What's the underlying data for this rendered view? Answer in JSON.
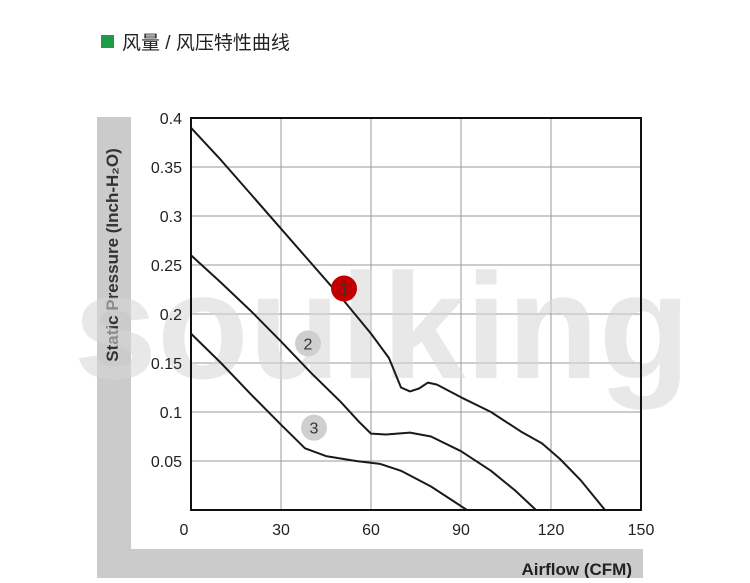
{
  "header": {
    "title": "风量 / 风压特性曲线"
  },
  "chart_data": {
    "type": "line",
    "watermark": "soulking",
    "x_label": "Airflow (CFM)",
    "y_label": "Static Pressure (Inch-H₂O)",
    "xlim": [
      0,
      150
    ],
    "ylim": [
      0,
      0.4
    ],
    "xticks": [
      0,
      30,
      60,
      90,
      120,
      150
    ],
    "yticks": [
      0.05,
      0.1,
      0.15,
      0.2,
      0.25,
      0.3,
      0.35,
      0.4
    ],
    "grid": true,
    "series": [
      {
        "name": "1",
        "color": "#1a1a1a",
        "badge_color": "#c00000",
        "x": [
          0,
          10,
          20,
          30,
          40,
          50,
          60,
          66,
          70,
          73,
          76,
          79,
          82,
          90,
          100,
          110,
          117,
          123,
          130,
          138
        ],
        "values": [
          0.39,
          0.357,
          0.322,
          0.287,
          0.252,
          0.217,
          0.18,
          0.155,
          0.125,
          0.121,
          0.124,
          0.13,
          0.128,
          0.115,
          0.1,
          0.08,
          0.068,
          0.052,
          0.03,
          0
        ]
      },
      {
        "name": "2",
        "color": "#1a1a1a",
        "badge_color": "#cfcfcf",
        "x": [
          0,
          10,
          20,
          30,
          40,
          50,
          56,
          60,
          65,
          73,
          80,
          90,
          100,
          108,
          115
        ],
        "values": [
          0.26,
          0.232,
          0.203,
          0.172,
          0.14,
          0.11,
          0.09,
          0.078,
          0.077,
          0.079,
          0.075,
          0.06,
          0.04,
          0.02,
          0
        ]
      },
      {
        "name": "3",
        "color": "#1a1a1a",
        "badge_color": "#cfcfcf",
        "x": [
          0,
          10,
          20,
          30,
          38,
          45,
          55,
          63,
          70,
          80,
          92
        ],
        "values": [
          0.18,
          0.15,
          0.118,
          0.087,
          0.063,
          0.055,
          0.05,
          0.047,
          0.04,
          0.024,
          0
        ]
      }
    ]
  }
}
